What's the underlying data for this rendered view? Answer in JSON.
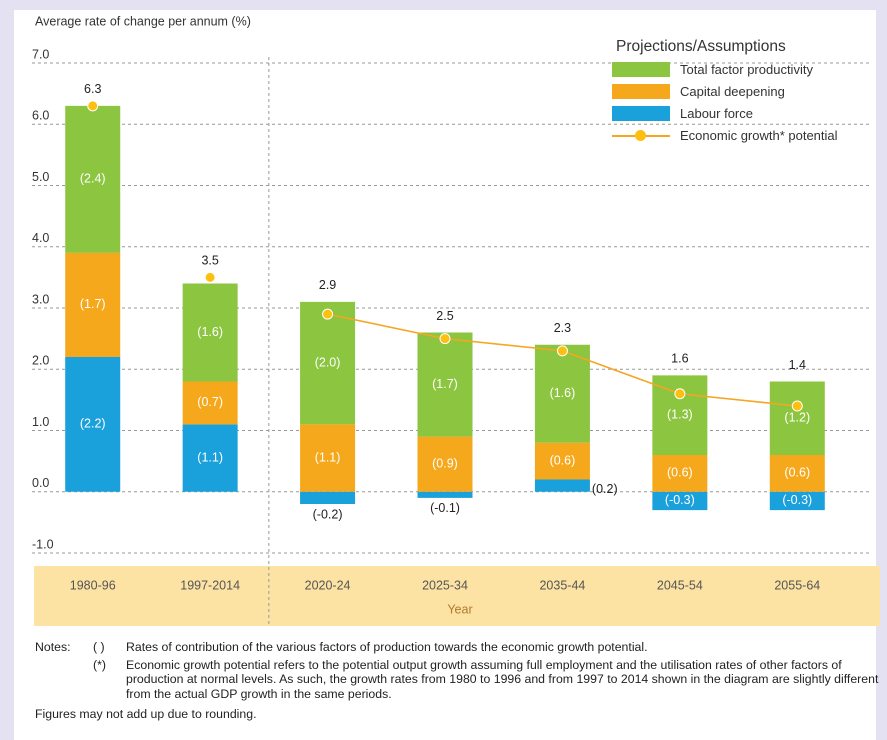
{
  "chart_data": {
    "type": "bar",
    "stacked": true,
    "y_axis_label": "Average rate of change per annum (%)",
    "x_axis_label": "Year",
    "legend_title": "Projections/Assumptions",
    "categories": [
      "1980-96",
      "1997-2014",
      "2020-24",
      "2025-34",
      "2035-44",
      "2045-54",
      "2055-64"
    ],
    "projection_start": 2,
    "series": [
      {
        "name": "Labour force",
        "color": "#1aa0da",
        "values": [
          2.2,
          1.1,
          -0.2,
          -0.1,
          0.2,
          -0.3,
          -0.3
        ],
        "value_labels": [
          "(2.2)",
          "(1.1)",
          "(-0.2)",
          "(-0.1)",
          "(0.2)",
          "(-0.3)",
          "(-0.3)"
        ]
      },
      {
        "name": "Capital deepening",
        "color": "#f6a81c",
        "values": [
          1.7,
          0.7,
          1.1,
          0.9,
          0.6,
          0.6,
          0.6
        ],
        "value_labels": [
          "(1.7)",
          "(0.7)",
          "(1.1)",
          "(0.9)",
          "(0.6)",
          "(0.6)",
          "(0.6)"
        ]
      },
      {
        "name": "Total factor productivity",
        "color": "#8cc540",
        "values": [
          2.4,
          1.6,
          2.0,
          1.7,
          1.6,
          1.3,
          1.2
        ],
        "value_labels": [
          "(2.4)",
          "(1.6)",
          "(2.0)",
          "(1.7)",
          "(1.6)",
          "(1.3)",
          "(1.2)"
        ]
      },
      {
        "name": "Economic growth* potential",
        "type": "line",
        "color": "#f5a623",
        "values": [
          6.3,
          3.5,
          2.9,
          2.5,
          2.3,
          1.6,
          1.4
        ]
      }
    ],
    "ylim": [
      -1,
      7
    ],
    "yticks": [
      {
        "value": -1,
        "label": "-1.0"
      },
      {
        "value": 0,
        "label": "0.0"
      },
      {
        "value": 1,
        "label": "1.0"
      },
      {
        "value": 2,
        "label": "2.0"
      },
      {
        "value": 3,
        "label": "3.0"
      },
      {
        "value": 4,
        "label": "4.0"
      },
      {
        "value": 5,
        "label": "5.0"
      },
      {
        "value": 6,
        "label": "6.0"
      },
      {
        "value": 7,
        "label": "7.0"
      }
    ],
    "grid": true,
    "notes_label": "Notes:",
    "notes": [
      {
        "marker": "( )",
        "text": "Rates of contribution of the various factors of production towards the economic growth potential."
      },
      {
        "marker": "(*)",
        "text": "Economic growth potential refers to the potential output growth assuming full employment and the utilisation rates of other factors of production at normal levels. As such, the growth rates from 1980 to 1996 and from 1997 to 2014 shown in the diagram are slightly different from the actual GDP growth in the same periods."
      }
    ],
    "footnote": "Figures may not add up due to rounding."
  }
}
